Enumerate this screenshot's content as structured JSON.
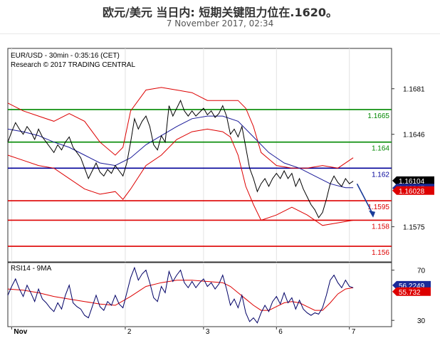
{
  "header": {
    "title": "欧元/美元 当日内: 短期关键阻力位在.1620。",
    "subtitle": "7 November 2017, 02:34"
  },
  "colors": {
    "price": "#000000",
    "bollinger": "#dd0000",
    "moving_average": "#1a1a99",
    "support": "#dd0000",
    "resistance_green": "#008800",
    "pivot_blue": "#000099",
    "arrow": "#1a3c99",
    "rsi": "#000066",
    "rsi_ma": "#dd0000"
  },
  "chart_data": [
    {
      "type": "line",
      "panel": "price",
      "info_line_1": "EUR/USD - 30min - 0:35:16 (CET)",
      "info_line_2": "Research © 2017 TRADING CENTRAL",
      "y_ticks": [
        "1.1681",
        "1.1646",
        "1.1575"
      ],
      "y_tick_values": [
        1.1681,
        1.1646,
        1.1575
      ],
      "ylim": [
        1.1548,
        1.1712
      ],
      "x_ticks": [
        "Nov",
        "2",
        "3",
        "6",
        "7"
      ],
      "x_tick_positions": [
        0.5,
        15.3,
        25.5,
        35.0,
        44.5
      ],
      "xlim": [
        0,
        50
      ],
      "horizontal_levels": [
        {
          "label": "1.1665",
          "value": 1.1665,
          "color": "green"
        },
        {
          "label": "1.164",
          "value": 1.164,
          "color": "green"
        },
        {
          "label": "1.162",
          "value": 1.162,
          "color": "blue"
        },
        {
          "label": "1.1595",
          "value": 1.1595,
          "color": "red"
        },
        {
          "label": "1.158",
          "value": 1.158,
          "color": "red"
        },
        {
          "label": "1.156",
          "value": 1.156,
          "color": "red"
        }
      ],
      "price_badges": [
        {
          "label": "1.16104",
          "value": 1.16104,
          "style": "black"
        },
        {
          "label": "1.16047",
          "value": 1.16047,
          "style": "blue"
        },
        {
          "label": "1.16028",
          "value": 1.16028,
          "style": "red"
        }
      ],
      "price_series": [
        [
          0.0,
          1.164
        ],
        [
          0.5,
          1.1648
        ],
        [
          1.0,
          1.1655
        ],
        [
          1.5,
          1.165
        ],
        [
          2.0,
          1.1646
        ],
        [
          2.5,
          1.1652
        ],
        [
          3.0,
          1.1648
        ],
        [
          3.5,
          1.1642
        ],
        [
          4.0,
          1.165
        ],
        [
          4.5,
          1.1644
        ],
        [
          5.0,
          1.164
        ],
        [
          5.5,
          1.1636
        ],
        [
          6.0,
          1.1632
        ],
        [
          6.5,
          1.1638
        ],
        [
          7.0,
          1.1634
        ],
        [
          7.5,
          1.164
        ],
        [
          8.0,
          1.1644
        ],
        [
          8.5,
          1.1636
        ],
        [
          9.0,
          1.1632
        ],
        [
          9.5,
          1.1628
        ],
        [
          10.0,
          1.162
        ],
        [
          10.5,
          1.1612
        ],
        [
          11.0,
          1.1618
        ],
        [
          11.5,
          1.1624
        ],
        [
          12.0,
          1.1617
        ],
        [
          12.5,
          1.1614
        ],
        [
          13.0,
          1.1619
        ],
        [
          13.5,
          1.1616
        ],
        [
          14.0,
          1.1622
        ],
        [
          14.5,
          1.1618
        ],
        [
          15.0,
          1.1614
        ],
        [
          15.5,
          1.1624
        ],
        [
          16.0,
          1.164
        ],
        [
          16.5,
          1.1658
        ],
        [
          17.0,
          1.165
        ],
        [
          17.5,
          1.1656
        ],
        [
          18.0,
          1.166
        ],
        [
          18.5,
          1.1652
        ],
        [
          19.0,
          1.1638
        ],
        [
          19.5,
          1.1634
        ],
        [
          20.0,
          1.1645
        ],
        [
          20.5,
          1.164
        ],
        [
          21.0,
          1.1668
        ],
        [
          21.5,
          1.166
        ],
        [
          22.0,
          1.1666
        ],
        [
          22.5,
          1.1672
        ],
        [
          23.0,
          1.1664
        ],
        [
          23.5,
          1.166
        ],
        [
          24.0,
          1.1664
        ],
        [
          24.5,
          1.166
        ],
        [
          25.0,
          1.1663
        ],
        [
          25.5,
          1.1666
        ],
        [
          26.0,
          1.1661
        ],
        [
          26.5,
          1.1664
        ],
        [
          27.0,
          1.1659
        ],
        [
          27.5,
          1.1662
        ],
        [
          28.0,
          1.1668
        ],
        [
          28.5,
          1.166
        ],
        [
          29.0,
          1.1646
        ],
        [
          29.5,
          1.165
        ],
        [
          30.0,
          1.1644
        ],
        [
          30.5,
          1.1652
        ],
        [
          31.0,
          1.1636
        ],
        [
          31.5,
          1.162
        ],
        [
          32.0,
          1.1612
        ],
        [
          32.5,
          1.1602
        ],
        [
          33.0,
          1.1608
        ],
        [
          33.5,
          1.1612
        ],
        [
          34.0,
          1.1606
        ],
        [
          34.5,
          1.1612
        ],
        [
          35.0,
          1.1616
        ],
        [
          35.5,
          1.1612
        ],
        [
          36.0,
          1.1618
        ],
        [
          36.5,
          1.1612
        ],
        [
          37.0,
          1.1616
        ],
        [
          37.5,
          1.1606
        ],
        [
          38.0,
          1.1612
        ],
        [
          38.5,
          1.1604
        ],
        [
          39.0,
          1.1598
        ],
        [
          39.5,
          1.1592
        ],
        [
          40.0,
          1.1588
        ],
        [
          40.5,
          1.1582
        ],
        [
          41.0,
          1.1586
        ],
        [
          41.5,
          1.1596
        ],
        [
          42.0,
          1.1608
        ],
        [
          42.5,
          1.1614
        ],
        [
          43.0,
          1.1609
        ],
        [
          43.5,
          1.1606
        ],
        [
          44.0,
          1.1612
        ],
        [
          44.5,
          1.1608
        ],
        [
          45.0,
          1.161
        ]
      ],
      "bollinger_upper": [
        [
          0.0,
          1.167
        ],
        [
          2.0,
          1.1664
        ],
        [
          4.0,
          1.166
        ],
        [
          6.0,
          1.1656
        ],
        [
          8.0,
          1.1662
        ],
        [
          10.0,
          1.1656
        ],
        [
          12.0,
          1.164
        ],
        [
          14.0,
          1.163
        ],
        [
          15.0,
          1.1636
        ],
        [
          16.0,
          1.1664
        ],
        [
          18.0,
          1.168
        ],
        [
          20.0,
          1.1682
        ],
        [
          22.0,
          1.168
        ],
        [
          24.0,
          1.1678
        ],
        [
          26.0,
          1.1672
        ],
        [
          28.0,
          1.1672
        ],
        [
          30.0,
          1.1672
        ],
        [
          31.0,
          1.1666
        ],
        [
          32.0,
          1.1652
        ],
        [
          33.0,
          1.1632
        ],
        [
          35.0,
          1.1622
        ],
        [
          37.0,
          1.162
        ],
        [
          39.0,
          1.162
        ],
        [
          41.0,
          1.1622
        ],
        [
          43.0,
          1.162
        ],
        [
          45.0,
          1.1628
        ]
      ],
      "bollinger_lower": [
        [
          0.0,
          1.163
        ],
        [
          2.0,
          1.1626
        ],
        [
          4.0,
          1.1622
        ],
        [
          6.0,
          1.162
        ],
        [
          8.0,
          1.1612
        ],
        [
          10.0,
          1.1604
        ],
        [
          12.0,
          1.16
        ],
        [
          14.0,
          1.1602
        ],
        [
          15.0,
          1.1596
        ],
        [
          16.0,
          1.1604
        ],
        [
          18.0,
          1.1622
        ],
        [
          20.0,
          1.163
        ],
        [
          22.0,
          1.1642
        ],
        [
          24.0,
          1.1648
        ],
        [
          26.0,
          1.165
        ],
        [
          28.0,
          1.1648
        ],
        [
          29.0,
          1.1644
        ],
        [
          30.0,
          1.163
        ],
        [
          31.0,
          1.1606
        ],
        [
          32.0,
          1.1592
        ],
        [
          33.0,
          1.158
        ],
        [
          35.0,
          1.1584
        ],
        [
          37.0,
          1.159
        ],
        [
          39.0,
          1.1584
        ],
        [
          41.0,
          1.1576
        ],
        [
          43.0,
          1.1578
        ],
        [
          45.0,
          1.158
        ]
      ],
      "moving_average": [
        [
          0.0,
          1.165
        ],
        [
          2.0,
          1.1648
        ],
        [
          4.0,
          1.1645
        ],
        [
          6.0,
          1.164
        ],
        [
          8.0,
          1.1636
        ],
        [
          10.0,
          1.163
        ],
        [
          12.0,
          1.1624
        ],
        [
          14.0,
          1.1622
        ],
        [
          16.0,
          1.1628
        ],
        [
          18.0,
          1.1638
        ],
        [
          20.0,
          1.1645
        ],
        [
          22.0,
          1.1652
        ],
        [
          24.0,
          1.1658
        ],
        [
          26.0,
          1.166
        ],
        [
          28.0,
          1.166
        ],
        [
          30.0,
          1.1656
        ],
        [
          32.0,
          1.1644
        ],
        [
          34.0,
          1.1632
        ],
        [
          36.0,
          1.1624
        ],
        [
          38.0,
          1.162
        ],
        [
          40.0,
          1.1614
        ],
        [
          42.0,
          1.1608
        ],
        [
          44.0,
          1.1605
        ],
        [
          45.0,
          1.1605
        ]
      ],
      "projection_arrow": [
        [
          45.5,
          1.1608
        ],
        [
          47.5,
          1.1582
        ]
      ]
    },
    {
      "type": "line",
      "panel": "rsi",
      "title": "RSI14 - 9MA",
      "y_ticks": [
        "70",
        "30"
      ],
      "y_tick_values": [
        70,
        30
      ],
      "ylim": [
        25,
        76
      ],
      "xlim": [
        0,
        50
      ],
      "value_badges": [
        {
          "label": "56.2249",
          "value": 56.2249,
          "style": "blue"
        },
        {
          "label": "55.732",
          "value": 55.732,
          "style": "red"
        }
      ],
      "rsi_series": [
        [
          0.0,
          50
        ],
        [
          0.5,
          57
        ],
        [
          1.0,
          63
        ],
        [
          1.5,
          55
        ],
        [
          2.0,
          49
        ],
        [
          2.5,
          58
        ],
        [
          3.0,
          52
        ],
        [
          3.5,
          45
        ],
        [
          4.0,
          55
        ],
        [
          4.5,
          47
        ],
        [
          5.0,
          44
        ],
        [
          5.5,
          40
        ],
        [
          6.0,
          37
        ],
        [
          6.5,
          44
        ],
        [
          7.0,
          39
        ],
        [
          7.5,
          50
        ],
        [
          8.0,
          58
        ],
        [
          8.5,
          44
        ],
        [
          9.0,
          41
        ],
        [
          9.5,
          39
        ],
        [
          10.0,
          34
        ],
        [
          10.5,
          32
        ],
        [
          11.0,
          41
        ],
        [
          11.5,
          50
        ],
        [
          12.0,
          41
        ],
        [
          12.5,
          38
        ],
        [
          13.0,
          45
        ],
        [
          13.5,
          42
        ],
        [
          14.0,
          50
        ],
        [
          14.5,
          43
        ],
        [
          15.0,
          40
        ],
        [
          15.5,
          52
        ],
        [
          16.0,
          64
        ],
        [
          16.5,
          72
        ],
        [
          17.0,
          62
        ],
        [
          17.5,
          67
        ],
        [
          18.0,
          70
        ],
        [
          18.5,
          60
        ],
        [
          19.0,
          48
        ],
        [
          19.5,
          45
        ],
        [
          20.0,
          57
        ],
        [
          20.5,
          52
        ],
        [
          21.0,
          69
        ],
        [
          21.5,
          61
        ],
        [
          22.0,
          66
        ],
        [
          22.5,
          70
        ],
        [
          23.0,
          60
        ],
        [
          23.5,
          56
        ],
        [
          24.0,
          61
        ],
        [
          24.5,
          56
        ],
        [
          25.0,
          60
        ],
        [
          25.5,
          63
        ],
        [
          26.0,
          57
        ],
        [
          26.5,
          60
        ],
        [
          27.0,
          55
        ],
        [
          27.5,
          59
        ],
        [
          28.0,
          66
        ],
        [
          28.5,
          55
        ],
        [
          29.0,
          42
        ],
        [
          29.5,
          47
        ],
        [
          30.0,
          40
        ],
        [
          30.5,
          50
        ],
        [
          31.0,
          36
        ],
        [
          31.5,
          29
        ],
        [
          32.0,
          32
        ],
        [
          32.5,
          28
        ],
        [
          33.0,
          36
        ],
        [
          33.5,
          42
        ],
        [
          34.0,
          37
        ],
        [
          34.5,
          45
        ],
        [
          35.0,
          49
        ],
        [
          35.5,
          43
        ],
        [
          36.0,
          52
        ],
        [
          36.5,
          44
        ],
        [
          37.0,
          48
        ],
        [
          37.5,
          39
        ],
        [
          38.0,
          46
        ],
        [
          38.5,
          39
        ],
        [
          39.0,
          36
        ],
        [
          39.5,
          34
        ],
        [
          40.0,
          36
        ],
        [
          40.5,
          35
        ],
        [
          41.0,
          40
        ],
        [
          41.5,
          50
        ],
        [
          42.0,
          62
        ],
        [
          42.5,
          66
        ],
        [
          43.0,
          60
        ],
        [
          43.5,
          56
        ],
        [
          44.0,
          62
        ],
        [
          44.5,
          57
        ],
        [
          45.0,
          56
        ]
      ],
      "rsi_ma_series": [
        [
          0.0,
          55
        ],
        [
          2.0,
          54
        ],
        [
          4.0,
          52
        ],
        [
          6.0,
          49
        ],
        [
          8.0,
          47
        ],
        [
          10.0,
          45
        ],
        [
          12.0,
          43
        ],
        [
          14.0,
          42
        ],
        [
          16.0,
          49
        ],
        [
          18.0,
          57
        ],
        [
          20.0,
          60
        ],
        [
          22.0,
          62
        ],
        [
          24.0,
          62
        ],
        [
          26.0,
          61
        ],
        [
          28.0,
          60
        ],
        [
          29.0,
          57
        ],
        [
          30.0,
          52
        ],
        [
          31.0,
          47
        ],
        [
          32.0,
          42
        ],
        [
          33.0,
          38
        ],
        [
          34.0,
          38
        ],
        [
          35.0,
          41
        ],
        [
          36.0,
          44
        ],
        [
          37.0,
          45
        ],
        [
          38.0,
          44
        ],
        [
          39.0,
          41
        ],
        [
          40.0,
          38
        ],
        [
          41.0,
          38
        ],
        [
          42.0,
          44
        ],
        [
          43.0,
          51
        ],
        [
          44.0,
          55
        ],
        [
          45.0,
          56
        ]
      ]
    }
  ]
}
